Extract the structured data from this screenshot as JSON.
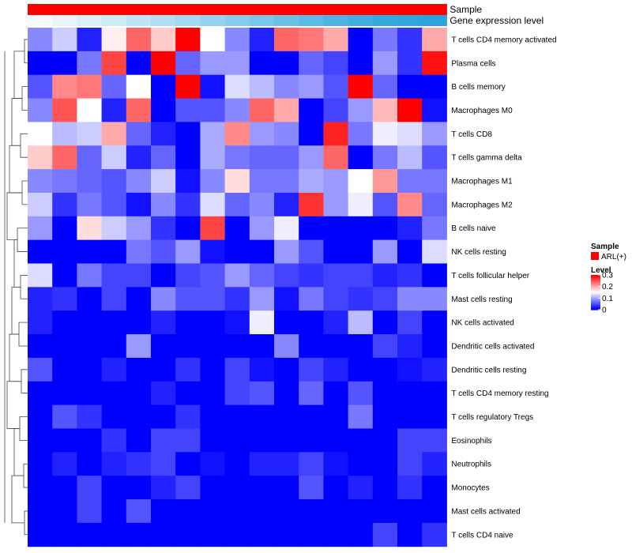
{
  "chart_data": {
    "type": "heatmap",
    "title": "",
    "columns": 17,
    "annotation_rows": [
      {
        "label": "Sample",
        "colors": [
          "#ff0000",
          "#ff0000",
          "#ff0000",
          "#ff0000",
          "#ff0000",
          "#ff0000",
          "#ff0000",
          "#ff0000",
          "#ff0000",
          "#ff0000",
          "#ff0000",
          "#ff0000",
          "#ff0000",
          "#ff0000",
          "#ff0000",
          "#ff0000",
          "#ff0000"
        ]
      },
      {
        "label": "Gene expression level",
        "colors": [
          "#f7fbfd",
          "#eaf5fb",
          "#dbeff9",
          "#cdeaf7",
          "#bfe4f5",
          "#b1def3",
          "#a3d8f1",
          "#95d2ef",
          "#87ccec",
          "#79c6ea",
          "#6bc0e8",
          "#5dbae6",
          "#4fb4e3",
          "#41aee1",
          "#33a8df",
          "#2fa6de",
          "#2aa4dd"
        ]
      }
    ],
    "rows": [
      "T cells CD4 memory activated",
      "Plasma cells",
      "B cells memory",
      "Macrophages M0",
      "T cells CD8",
      "T cells gamma delta",
      "Macrophages M1",
      "Macrophages M2",
      "B cells naive",
      "NK cells resting",
      "T cells follicular helper",
      "Mast cells resting",
      "NK cells activated",
      "Dendritic cells activated",
      "Dendritic cells resting",
      "T cells CD4 memory resting",
      "T cells regulatory  Tregs",
      "Eosinophils",
      "Neutrophils",
      "Monocytes",
      "Mast cells activated",
      "T cells CD4 naive"
    ],
    "values": [
      [
        0.08,
        0.12,
        0.02,
        0.16,
        0.24,
        0.18,
        0.3,
        0.15,
        0.08,
        0.02,
        0.24,
        0.23,
        0.2,
        0.0,
        0.07,
        0.03,
        0.2
      ],
      [
        0.0,
        0.0,
        0.07,
        0.26,
        0.0,
        0.3,
        0.06,
        0.09,
        0.09,
        0.0,
        0.0,
        0.06,
        0.04,
        0.0,
        0.09,
        0.03,
        0.29
      ],
      [
        0.05,
        0.22,
        0.23,
        0.06,
        0.15,
        0.0,
        0.3,
        0.01,
        0.13,
        0.11,
        0.08,
        0.09,
        0.05,
        0.3,
        0.06,
        0.0,
        0.0
      ],
      [
        0.08,
        0.25,
        0.15,
        0.02,
        0.24,
        0.0,
        0.05,
        0.05,
        0.08,
        0.24,
        0.2,
        0.0,
        0.04,
        0.09,
        0.19,
        0.3,
        0.01
      ],
      [
        0.15,
        0.11,
        0.12,
        0.2,
        0.06,
        0.02,
        0.0,
        0.1,
        0.22,
        0.09,
        0.08,
        0.0,
        0.28,
        0.07,
        0.14,
        0.13,
        0.09
      ],
      [
        0.18,
        0.24,
        0.06,
        0.12,
        0.02,
        0.06,
        0.0,
        0.1,
        0.07,
        0.06,
        0.06,
        0.09,
        0.24,
        0.0,
        0.07,
        0.11,
        0.05
      ],
      [
        0.08,
        0.07,
        0.06,
        0.05,
        0.08,
        0.12,
        0.01,
        0.08,
        0.17,
        0.07,
        0.07,
        0.1,
        0.09,
        0.15,
        0.21,
        0.07,
        0.07
      ],
      [
        0.12,
        0.03,
        0.07,
        0.05,
        0.01,
        0.08,
        0.03,
        0.13,
        0.06,
        0.08,
        0.02,
        0.27,
        0.09,
        0.14,
        0.05,
        0.22,
        0.06
      ],
      [
        0.09,
        0.0,
        0.17,
        0.12,
        0.09,
        0.03,
        0.0,
        0.26,
        0.0,
        0.09,
        0.14,
        0.0,
        0.0,
        0.0,
        0.0,
        0.02,
        0.07
      ],
      [
        0.0,
        0.0,
        0.0,
        0.0,
        0.07,
        0.05,
        0.09,
        0.01,
        0.0,
        0.0,
        0.09,
        0.05,
        0.0,
        0.0,
        0.09,
        0.0,
        0.13
      ],
      [
        0.13,
        0.0,
        0.07,
        0.04,
        0.04,
        0.0,
        0.04,
        0.05,
        0.09,
        0.06,
        0.04,
        0.03,
        0.04,
        0.04,
        0.02,
        0.03,
        0.0
      ],
      [
        0.02,
        0.03,
        0.0,
        0.04,
        0.0,
        0.08,
        0.05,
        0.05,
        0.03,
        0.09,
        0.01,
        0.07,
        0.04,
        0.03,
        0.04,
        0.08,
        0.08
      ],
      [
        0.02,
        0.0,
        0.0,
        0.0,
        0.0,
        0.02,
        0.0,
        0.0,
        0.01,
        0.14,
        0.0,
        0.0,
        0.02,
        0.11,
        0.0,
        0.04,
        0.0
      ],
      [
        0.0,
        0.0,
        0.0,
        0.0,
        0.09,
        0.0,
        0.0,
        0.0,
        0.0,
        0.0,
        0.08,
        0.0,
        0.0,
        0.0,
        0.04,
        0.02,
        0.0
      ],
      [
        0.05,
        0.0,
        0.0,
        0.02,
        0.0,
        0.0,
        0.03,
        0.0,
        0.04,
        0.01,
        0.0,
        0.04,
        0.02,
        0.0,
        0.0,
        0.01,
        0.02
      ],
      [
        0.0,
        0.0,
        0.0,
        0.0,
        0.0,
        0.02,
        0.0,
        0.0,
        0.04,
        0.05,
        0.0,
        0.06,
        0.0,
        0.05,
        0.0,
        0.0,
        0.0
      ],
      [
        0.0,
        0.05,
        0.03,
        0.0,
        0.0,
        0.0,
        0.03,
        0.0,
        0.0,
        0.0,
        0.0,
        0.0,
        0.0,
        0.07,
        0.0,
        0.0,
        0.0
      ],
      [
        0.0,
        0.0,
        0.0,
        0.03,
        0.0,
        0.04,
        0.04,
        0.0,
        0.0,
        0.0,
        0.0,
        0.0,
        0.0,
        0.0,
        0.0,
        0.04,
        0.04
      ],
      [
        0.0,
        0.02,
        0.0,
        0.02,
        0.03,
        0.04,
        0.0,
        0.01,
        0.0,
        0.02,
        0.02,
        0.04,
        0.01,
        0.0,
        0.0,
        0.04,
        0.02
      ],
      [
        0.0,
        0.0,
        0.04,
        0.0,
        0.0,
        0.02,
        0.04,
        0.0,
        0.0,
        0.0,
        0.0,
        0.05,
        0.0,
        0.02,
        0.0,
        0.03,
        0.0
      ],
      [
        0.0,
        0.0,
        0.04,
        0.0,
        0.05,
        0.0,
        0.0,
        0.0,
        0.0,
        0.0,
        0.0,
        0.0,
        0.0,
        0.0,
        0.0,
        0.0,
        0.0
      ],
      [
        0.0,
        0.0,
        0.0,
        0.0,
        0.0,
        0.0,
        0.0,
        0.0,
        0.0,
        0.0,
        0.0,
        0.0,
        0.0,
        0.0,
        0.04,
        0.0,
        0.03
      ]
    ],
    "color_scale": {
      "min": 0,
      "mid": 0.15,
      "max": 0.3,
      "low": "#0000ff",
      "mid_color": "#ffffff",
      "high": "#ff0000"
    },
    "legend": {
      "position": "right",
      "sample_title": "Sample",
      "sample_entries": [
        {
          "label": "ARL(+)",
          "color": "#ff0000"
        }
      ],
      "level_title": "Level",
      "level_ticks": [
        {
          "value": 0.3,
          "label": "0.3"
        },
        {
          "value": 0.2,
          "label": "0.2"
        },
        {
          "value": 0.1,
          "label": "0.1"
        },
        {
          "value": 0,
          "label": "0"
        }
      ]
    },
    "dendrogram": {
      "side": "left"
    }
  }
}
